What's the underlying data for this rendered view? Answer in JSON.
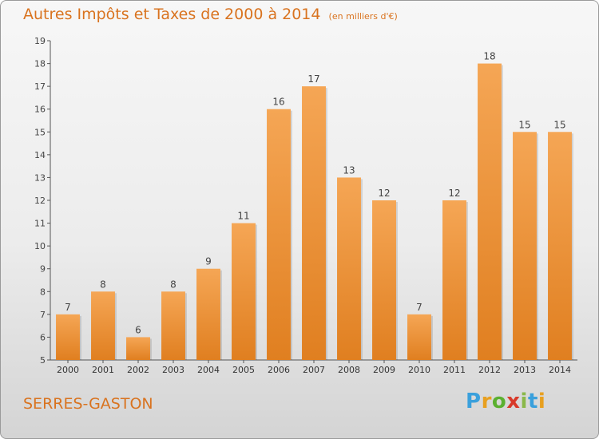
{
  "header": {
    "title": "Autres Impôts et Taxes de 2000 à 2014",
    "unit": "(en milliers d'€)"
  },
  "footer": {
    "commune": "SERRES-GASTON",
    "logo_text": "Proxiti"
  },
  "colors": {
    "accent": "#d9731f",
    "bar_light": "#f5a655",
    "bar_dark": "#e07f20"
  },
  "chart_data": {
    "type": "bar",
    "categories": [
      "2000",
      "2001",
      "2002",
      "2003",
      "2004",
      "2005",
      "2006",
      "2007",
      "2008",
      "2009",
      "2010",
      "2011",
      "2012",
      "2013",
      "2014"
    ],
    "values": [
      7,
      8,
      6,
      8,
      9,
      11,
      16,
      17,
      13,
      12,
      7,
      12,
      18,
      15,
      15
    ],
    "ylim": [
      5,
      19
    ],
    "yticks": [
      5,
      6,
      7,
      8,
      9,
      10,
      11,
      12,
      13,
      14,
      15,
      16,
      17,
      18,
      19
    ],
    "grid": false,
    "data_labels": true
  }
}
